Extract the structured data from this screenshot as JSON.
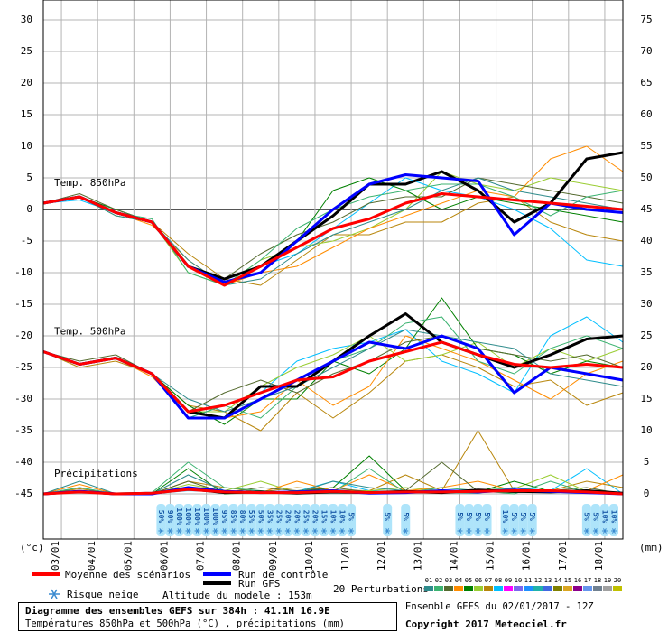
{
  "chart_data": {
    "type": "line",
    "title": "Diagramme des ensembles GEFS sur 384h : 41.1N 16.9E",
    "subtitle": "Températures 850hPa et 500hPa (°C) , précipitations (mm)",
    "run_info": "Ensemble GEFS du 02/01/2017 - 12Z",
    "copyright": "Copyright 2017 Meteociel.fr",
    "y_unit": "(°c)",
    "y2_unit": "(mm)",
    "panels": [
      "Temp. 850hPa",
      "Temp. 500hPa",
      "Précipitations"
    ],
    "perturbations_label": "20 Perturbations",
    "snow_label": "Risque neige",
    "altitude": "Altitude du modele : 153m",
    "grid": true,
    "x": [
      0,
      24,
      48,
      72,
      96,
      120,
      144,
      168,
      192,
      216,
      240,
      264,
      288,
      312,
      336,
      360,
      384
    ],
    "xlim": [
      0,
      384
    ],
    "xticks": [
      {
        "value": 12,
        "label": "03/01"
      },
      {
        "value": 36,
        "label": "04/01"
      },
      {
        "value": 60,
        "label": "05/01"
      },
      {
        "value": 84,
        "label": "06/01"
      },
      {
        "value": 108,
        "label": "07/01"
      },
      {
        "value": 132,
        "label": "08/01"
      },
      {
        "value": 156,
        "label": "09/01"
      },
      {
        "value": 180,
        "label": "10/01"
      },
      {
        "value": 204,
        "label": "11/01"
      },
      {
        "value": 228,
        "label": "12/01"
      },
      {
        "value": 252,
        "label": "13/01"
      },
      {
        "value": 276,
        "label": "14/01"
      },
      {
        "value": 300,
        "label": "15/01"
      },
      {
        "value": 324,
        "label": "16/01"
      },
      {
        "value": 348,
        "label": "17/01"
      },
      {
        "value": 372,
        "label": "18/01"
      }
    ],
    "ylim": [
      -52.14,
      33.14
    ],
    "yticks": [
      30,
      25,
      20,
      15,
      10,
      5,
      0,
      -5,
      -10,
      -15,
      -20,
      -25,
      -30,
      -35,
      -40,
      -45
    ],
    "y2lim": [
      -7.14,
      78.14
    ],
    "y2ticks": [
      75,
      70,
      65,
      60,
      55,
      50,
      45,
      40,
      35,
      30,
      25,
      20,
      15,
      10,
      5,
      0
    ],
    "series": [
      {
        "name": "Moyenne des scénarios",
        "color": "#ff0000",
        "width": 3,
        "panel": 0,
        "values": [
          1,
          2,
          -0.5,
          -2,
          -9,
          -12,
          -9,
          -6,
          -3,
          -1.5,
          1,
          2.5,
          2,
          1.5,
          1,
          0.5,
          0
        ]
      },
      {
        "name": "Run de contrôle",
        "color": "#0000ff",
        "width": 3,
        "panel": 0,
        "values": [
          1,
          2,
          -0.5,
          -2,
          -9,
          -11.5,
          -10,
          -5,
          0,
          4,
          5.5,
          5,
          4.5,
          -4,
          1,
          0,
          -0.5
        ]
      },
      {
        "name": "Run GFS",
        "color": "#000000",
        "width": 3,
        "panel": 0,
        "values": [
          1,
          2,
          -0.5,
          -2,
          -9,
          -11,
          -9,
          -5,
          -1,
          4,
          4,
          6,
          3,
          -2,
          1,
          8,
          9
        ]
      },
      {
        "name": "Moyenne des scénarios",
        "color": "#ff0000",
        "width": 3,
        "panel": 1,
        "values": [
          -22.5,
          -24.5,
          -23.5,
          -26,
          -32,
          -31,
          -29,
          -27,
          -26.5,
          -24,
          -22.5,
          -21,
          -23,
          -24.5,
          -25,
          -24.5,
          -25
        ]
      },
      {
        "name": "Run de contrôle",
        "color": "#0000ff",
        "width": 3,
        "panel": 1,
        "values": [
          -22.5,
          -24.5,
          -23.5,
          -26,
          -33,
          -33,
          -30,
          -27,
          -24,
          -21,
          -22,
          -20,
          -22,
          -29,
          -25,
          -26,
          -27
        ]
      },
      {
        "name": "Run GFS",
        "color": "#000000",
        "width": 3,
        "panel": 1,
        "values": [
          -22.5,
          -24.5,
          -23.5,
          -26,
          -32,
          -33,
          -28,
          -28,
          -24,
          -20,
          -16.5,
          -21,
          -23,
          -25,
          -23,
          -20.5,
          -20
        ]
      },
      {
        "name": "Moyenne des scénarios",
        "color": "#ff0000",
        "width": 3,
        "panel": 2,
        "axis": "y2",
        "values": [
          0,
          0.3,
          0,
          0.1,
          0.7,
          0.3,
          0.2,
          0.2,
          0.4,
          0.2,
          0.3,
          0.3,
          0.4,
          0.5,
          0.5,
          0.3,
          0
        ]
      },
      {
        "name": "Run de contrôle",
        "color": "#0000ff",
        "width": 3,
        "panel": 2,
        "axis": "y2",
        "values": [
          0,
          0.4,
          0,
          0,
          1,
          0.4,
          0.2,
          0.3,
          0.5,
          0.1,
          0.2,
          0.5,
          0.3,
          0.6,
          0.4,
          0.2,
          0
        ]
      },
      {
        "name": "Run GFS",
        "color": "#000000",
        "width": 3,
        "panel": 2,
        "axis": "y2",
        "values": [
          0,
          0.4,
          0,
          0.1,
          0.8,
          0.2,
          0.3,
          0.1,
          0.3,
          0.2,
          0.4,
          0.2,
          0.6,
          0.4,
          0.3,
          0.5,
          0.1
        ]
      },
      {
        "name": "01",
        "color": "#2e8b8b",
        "width": 1,
        "panel": 0,
        "values": [
          1,
          2,
          -1,
          -2,
          -8,
          -12,
          -11,
          -7,
          -4,
          -2,
          0,
          3,
          5,
          3,
          2,
          1,
          0
        ]
      },
      {
        "name": "02",
        "color": "#3cb371",
        "width": 1,
        "panel": 0,
        "values": [
          1,
          2,
          -0.5,
          -1.5,
          -10,
          -12,
          -8,
          -3,
          0,
          2,
          3,
          4,
          4,
          2,
          -1,
          2,
          3
        ]
      },
      {
        "name": "03",
        "color": "#556b2f",
        "width": 1,
        "panel": 0,
        "values": [
          1,
          2.5,
          0,
          -2,
          -9,
          -11,
          -7,
          -4,
          -2,
          1,
          2,
          2,
          5,
          4,
          3,
          2,
          1
        ]
      },
      {
        "name": "04",
        "color": "#ff8c00",
        "width": 1,
        "panel": 0,
        "values": [
          1,
          2,
          -0.5,
          -2.5,
          -8,
          -12,
          -10,
          -9,
          -6,
          -3,
          -1,
          1,
          3,
          2,
          8,
          10,
          6
        ]
      },
      {
        "name": "05",
        "color": "#008000",
        "width": 1,
        "panel": 0,
        "values": [
          1,
          2,
          0,
          -2,
          -9,
          -12,
          -9,
          -5,
          3,
          5,
          3,
          0,
          2,
          1,
          0,
          -1,
          -2
        ]
      },
      {
        "name": "06",
        "color": "#9acd32",
        "width": 1,
        "panel": 0,
        "values": [
          1,
          2,
          -1,
          -2,
          -10,
          -12,
          -8,
          -6,
          -5,
          -3,
          0,
          6,
          4,
          3,
          5,
          4,
          3
        ]
      },
      {
        "name": "07",
        "color": "#b8860b",
        "width": 1,
        "panel": 0,
        "values": [
          1,
          2,
          -0.5,
          -2,
          -7,
          -11,
          -12,
          -8,
          -4,
          -4,
          -2,
          -2,
          1,
          2,
          -2,
          -4,
          -5
        ]
      },
      {
        "name": "08",
        "color": "#00bfff",
        "width": 1,
        "panel": 0,
        "values": [
          1,
          1.5,
          -0.5,
          -2,
          -9,
          -12,
          -9,
          -7,
          -3,
          1,
          5,
          3,
          2,
          0,
          -3,
          -8,
          -9
        ]
      },
      {
        "name": "01",
        "color": "#2e8b8b",
        "width": 1,
        "panel": 1,
        "values": [
          -22.5,
          -24.5,
          -23.5,
          -26,
          -30,
          -32,
          -30,
          -28,
          -25,
          -22,
          -19,
          -20,
          -21,
          -22,
          -26,
          -27,
          -28
        ]
      },
      {
        "name": "02",
        "color": "#3cb371",
        "width": 1,
        "panel": 1,
        "values": [
          -22.5,
          -24.5,
          -23.5,
          -26,
          -33,
          -31,
          -33,
          -28,
          -24,
          -22,
          -18,
          -17,
          -24,
          -26,
          -22,
          -20,
          -22
        ]
      },
      {
        "name": "03",
        "color": "#556b2f",
        "width": 1,
        "panel": 1,
        "values": [
          -22.5,
          -24,
          -23,
          -26,
          -32,
          -29,
          -27,
          -29,
          -26,
          -24,
          -21,
          -20,
          -22,
          -23,
          -24,
          -23,
          -25
        ]
      },
      {
        "name": "04",
        "color": "#ff8c00",
        "width": 1,
        "panel": 1,
        "values": [
          -22.5,
          -24.5,
          -23.5,
          -26.5,
          -32,
          -33,
          -32,
          -27,
          -31,
          -28,
          -20,
          -22,
          -24,
          -27,
          -30,
          -26,
          -24
        ]
      },
      {
        "name": "05",
        "color": "#008000",
        "width": 1,
        "panel": 1,
        "values": [
          -22.5,
          -24.5,
          -23.5,
          -26,
          -31,
          -34,
          -30,
          -30,
          -24,
          -26,
          -22,
          -14,
          -22,
          -23,
          -26,
          -24,
          -25
        ]
      },
      {
        "name": "06",
        "color": "#9acd32",
        "width": 1,
        "panel": 1,
        "values": [
          -22.5,
          -24.5,
          -23.5,
          -26,
          -32,
          -32,
          -28,
          -25,
          -23,
          -20,
          -24,
          -23,
          -21,
          -25,
          -22,
          -24,
          -22
        ]
      },
      {
        "name": "07",
        "color": "#b8860b",
        "width": 1,
        "panel": 1,
        "values": [
          -22.5,
          -25,
          -24,
          -26,
          -31,
          -32,
          -35,
          -29,
          -33,
          -29,
          -24,
          -23,
          -25,
          -28,
          -27,
          -31,
          -29
        ]
      },
      {
        "name": "08",
        "color": "#00bfff",
        "width": 1,
        "panel": 1,
        "values": [
          -22.5,
          -24.5,
          -23.5,
          -26,
          -33,
          -31,
          -29,
          -24,
          -22,
          -21,
          -19,
          -24,
          -26,
          -29,
          -20,
          -17,
          -21
        ]
      },
      {
        "name": "01",
        "color": "#2e8b8b",
        "width": 1,
        "panel": 2,
        "axis": "y2",
        "values": [
          0,
          2,
          0,
          0,
          3,
          0.5,
          0.3,
          0.2,
          2,
          1,
          0.5,
          0.2,
          0.1,
          1,
          0.3,
          0.5,
          0
        ]
      },
      {
        "name": "02",
        "color": "#3cb371",
        "width": 1,
        "panel": 2,
        "axis": "y2",
        "values": [
          0,
          1,
          0,
          0.2,
          5,
          1,
          0.5,
          0,
          0.3,
          4,
          0.2,
          1,
          0.5,
          0,
          2,
          0.2,
          0
        ]
      },
      {
        "name": "03",
        "color": "#556b2f",
        "width": 1,
        "panel": 2,
        "axis": "y2",
        "values": [
          0,
          0.5,
          0,
          0,
          2,
          0.2,
          1,
          0.5,
          1,
          0.3,
          0.5,
          5,
          0.4,
          0.2,
          0.5,
          1,
          0
        ]
      },
      {
        "name": "04",
        "color": "#ff8c00",
        "width": 1,
        "panel": 2,
        "axis": "y2",
        "values": [
          0,
          1.5,
          0,
          0,
          1,
          0.3,
          0.2,
          2,
          0.5,
          3,
          0.5,
          1,
          2,
          0.5,
          0.3,
          0.5,
          3
        ]
      },
      {
        "name": "05",
        "color": "#008000",
        "width": 1,
        "panel": 2,
        "axis": "y2",
        "values": [
          0,
          0.3,
          0,
          0,
          4,
          0,
          0.2,
          0.3,
          1,
          6,
          0.5,
          0.3,
          0.3,
          2,
          0.4,
          0.2,
          0
        ]
      },
      {
        "name": "06",
        "color": "#9acd32",
        "width": 1,
        "panel": 2,
        "axis": "y2",
        "values": [
          0,
          0.2,
          0.1,
          0,
          1.5,
          0.5,
          2,
          0.2,
          0.4,
          0.5,
          1,
          0.5,
          0.6,
          0.8,
          3,
          0.4,
          0
        ]
      },
      {
        "name": "07",
        "color": "#b8860b",
        "width": 1,
        "panel": 2,
        "axis": "y2",
        "values": [
          0,
          0.8,
          0,
          0,
          2,
          1,
          0.3,
          1,
          0.6,
          0.5,
          3,
          0.5,
          10,
          0.5,
          0.5,
          2,
          1
        ]
      },
      {
        "name": "08",
        "color": "#00bfff",
        "width": 1,
        "panel": 2,
        "axis": "y2",
        "values": [
          0,
          1,
          0,
          0,
          0.5,
          0.3,
          0.1,
          0.4,
          2,
          0.5,
          0.2,
          0.3,
          0.5,
          1,
          0.5,
          4,
          0
        ]
      }
    ],
    "perturbation_legend": [
      {
        "name": "01",
        "color": "#2e8b8b"
      },
      {
        "name": "02",
        "color": "#3cb371"
      },
      {
        "name": "03",
        "color": "#556b2f"
      },
      {
        "name": "04",
        "color": "#ff8c00"
      },
      {
        "name": "05",
        "color": "#008000"
      },
      {
        "name": "06",
        "color": "#9acd32"
      },
      {
        "name": "07",
        "color": "#b8860b"
      },
      {
        "name": "08",
        "color": "#00bfff"
      },
      {
        "name": "09",
        "color": "#ff00ff"
      },
      {
        "name": "10",
        "color": "#7b68ee"
      },
      {
        "name": "11",
        "color": "#1e90ff"
      },
      {
        "name": "12",
        "color": "#20b2aa"
      },
      {
        "name": "13",
        "color": "#4169e1"
      },
      {
        "name": "14",
        "color": "#808000"
      },
      {
        "name": "15",
        "color": "#daa520"
      },
      {
        "name": "16",
        "color": "#8b008b"
      },
      {
        "name": "17",
        "color": "#6495ed"
      },
      {
        "name": "18",
        "color": "#708090"
      },
      {
        "name": "19",
        "color": "#a0a0a0"
      },
      {
        "name": "20",
        "color": "#c0c000"
      }
    ],
    "snow_risk": {
      "x": [
        78,
        84,
        90,
        96,
        102,
        108,
        114,
        120,
        126,
        132,
        138,
        144,
        150,
        156,
        162,
        168,
        174,
        180,
        186,
        192,
        198,
        204,
        228,
        240,
        276,
        282,
        288,
        294,
        306,
        312,
        318,
        324,
        360,
        366,
        372,
        378
      ],
      "values": [
        50,
        90,
        100,
        100,
        100,
        100,
        100,
        95,
        85,
        80,
        55,
        50,
        35,
        25,
        20,
        20,
        25,
        20,
        15,
        10,
        10,
        5,
        5,
        5,
        5,
        5,
        5,
        5,
        10,
        5,
        5,
        5,
        5,
        5,
        10,
        10
      ],
      "value_labels": [
        "50%",
        "90%",
        "100%",
        "100%",
        "100%",
        "100%",
        "100%",
        "95%",
        "85%",
        "80%",
        "55%",
        "50%",
        "35%",
        "25%",
        "20%",
        "20%",
        "25%",
        "20%",
        "15%",
        "10%",
        "10%",
        "5%",
        "5%",
        "5%",
        "5%",
        "5%",
        "5%",
        "5%",
        "10%",
        "5%",
        "5%",
        "5%",
        "5%",
        "5%",
        "10%",
        "10%"
      ]
    }
  }
}
